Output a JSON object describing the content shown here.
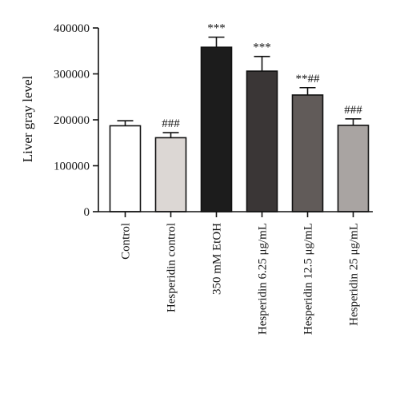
{
  "chart_data": {
    "type": "bar",
    "title": "",
    "xlabel": "",
    "ylabel": "Liver gray level",
    "ylim": [
      0,
      400000
    ],
    "yticks": [
      0,
      100000,
      200000,
      300000,
      400000
    ],
    "ytick_labels": [
      "0",
      "100000",
      "200000",
      "300000",
      "400000"
    ],
    "grid": false,
    "categories": [
      "Control",
      "Hesperidin control",
      "350 mM EtOH",
      "Hesperidin 6.25 μg/mL",
      "Hesperidin 12.5 μg/mL",
      "Hesperidin 25 μg/mL"
    ],
    "values": [
      187000,
      161000,
      358000,
      306000,
      254000,
      188000
    ],
    "errors": [
      11000,
      11000,
      22000,
      32000,
      16000,
      14000
    ],
    "significance": [
      "",
      "###",
      "***",
      "***",
      "**##",
      "###"
    ],
    "bar_colors": [
      "#ffffff",
      "#dcd7d4",
      "#1c1c1c",
      "#3a3636",
      "#615b59",
      "#a9a4a2"
    ]
  }
}
